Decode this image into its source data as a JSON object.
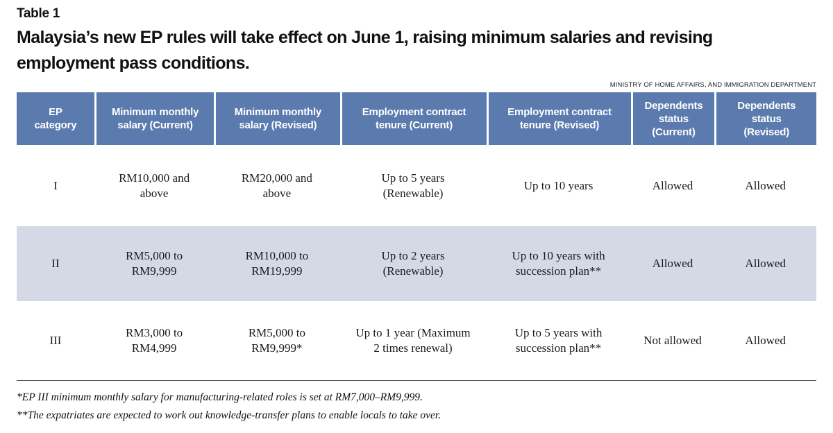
{
  "figure": {
    "table_label": "Table 1",
    "title": "Malaysia’s new EP rules will take effect on June 1, raising minimum salaries and revising\nemployment pass conditions.",
    "source": "MINISTRY OF HOME AFFAIRS, AND IMMIGRATION DEPARTMENT"
  },
  "colors": {
    "header_bg": "#5b7aae",
    "row_highlight": "#d5d9e6",
    "header_text": "#ffffff"
  },
  "chart_data": {
    "type": "table",
    "title": "Malaysia’s new EP rules will take effect on June 1, raising minimum salaries and revising employment pass conditions.",
    "columns": [
      "EP\ncategory",
      "Minimum monthly\nsalary (Current)",
      "Minimum monthly\nsalary (Revised)",
      "Employment contract\ntenure (Current)",
      "Employment contract\ntenure (Revised)",
      "Dependents\nstatus\n(Current)",
      "Dependents\nstatus\n(Revised)"
    ],
    "rows": [
      [
        "I",
        "RM10,000 and\nabove",
        "RM20,000 and\nabove",
        "Up to 5 years\n(Renewable)",
        "Up to 10 years",
        "Allowed",
        "Allowed"
      ],
      [
        "II",
        "RM5,000 to\nRM9,999",
        "RM10,000 to\nRM19,999",
        "Up to 2 years\n(Renewable)",
        "Up to 10 years with\nsuccession plan**",
        "Allowed",
        "Allowed"
      ],
      [
        "III",
        "RM3,000 to\nRM4,999",
        "RM5,000 to\nRM9,999*",
        "Up to 1 year (Maximum\n2 times renewal)",
        "Up to 5 years with\nsuccession plan**",
        "Not allowed",
        "Allowed"
      ]
    ],
    "footnotes": [
      "*EP III minimum monthly salary for manufacturing-related roles is set at RM7,000–RM9,999.",
      "**The expatriates are expected to work out knowledge-transfer plans to enable locals to take over."
    ]
  }
}
